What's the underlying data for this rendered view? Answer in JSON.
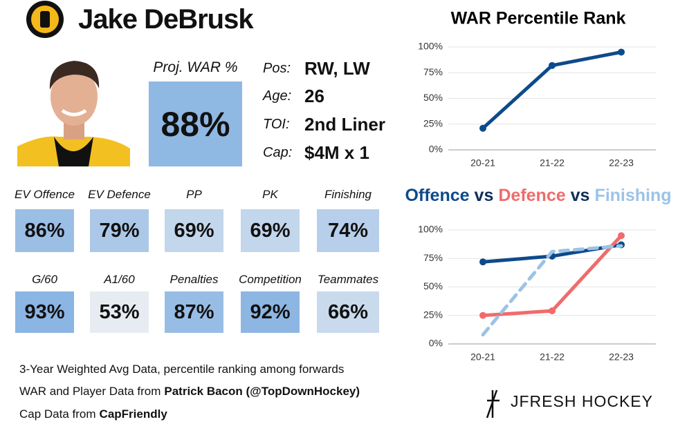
{
  "header": {
    "name": "Jake DeBrusk"
  },
  "proj_war": {
    "label": "Proj. WAR %",
    "value": "88%"
  },
  "info": [
    {
      "label": "Pos:",
      "value": "RW, LW"
    },
    {
      "label": "Age:",
      "value": "26"
    },
    {
      "label": "TOI:",
      "value": "2nd Liner"
    },
    {
      "label": "Cap:",
      "value": "$4M x 1"
    }
  ],
  "stats": [
    [
      {
        "label": "EV Offence",
        "value": "86%"
      },
      {
        "label": "EV Defence",
        "value": "79%"
      },
      {
        "label": "PP",
        "value": "69%"
      },
      {
        "label": "PK",
        "value": "69%"
      },
      {
        "label": "Finishing",
        "value": "74%"
      }
    ],
    [
      {
        "label": "G/60",
        "value": "93%"
      },
      {
        "label": "A1/60",
        "value": "53%"
      },
      {
        "label": "Penalties",
        "value": "87%"
      },
      {
        "label": "Competition",
        "value": "92%"
      },
      {
        "label": "Teammates",
        "value": "66%"
      }
    ]
  ],
  "footer": [
    {
      "text": "3-Year Weighted Avg Data, percentile ranking among forwards"
    },
    {
      "text": "WAR and Player Data from",
      "bold": "Patrick Bacon (@TopDownHockey)"
    },
    {
      "text": "Cap Data from",
      "bold": "CapFriendly"
    }
  ],
  "brand": "JFRESH HOCKEY",
  "chart_data": [
    {
      "type": "line",
      "title": "WAR Percentile Rank",
      "categories": [
        "20-21",
        "21-22",
        "22-23"
      ],
      "series": [
        {
          "name": null,
          "color": "#0d4a8a",
          "values": [
            21,
            82,
            95
          ]
        }
      ],
      "ylim": [
        0,
        100
      ],
      "yticks": [
        {
          "value": 0,
          "label": "0%"
        },
        {
          "value": 25,
          "label": "25%"
        },
        {
          "value": 50,
          "label": "50%"
        },
        {
          "value": 75,
          "label": "75%"
        },
        {
          "value": 100,
          "label": "100%"
        }
      ],
      "grid": true
    },
    {
      "type": "line",
      "title_separator": "vs",
      "categories": [
        "20-21",
        "21-22",
        "22-23"
      ],
      "series": [
        {
          "name": "Offence",
          "color": "#0d4a8a",
          "values": [
            72,
            77,
            87
          ]
        },
        {
          "name": "Defence",
          "color": "#f06b6b",
          "values": [
            25,
            29,
            95
          ]
        },
        {
          "name": "Finishing",
          "color": "#9cc3e6",
          "values": [
            8,
            81,
            86
          ],
          "dashed": true
        }
      ],
      "ylim": [
        0,
        100
      ],
      "yticks": [
        {
          "value": 0,
          "label": "0%"
        },
        {
          "value": 25,
          "label": "25%"
        },
        {
          "value": 50,
          "label": "50%"
        },
        {
          "value": 75,
          "label": "75%"
        },
        {
          "value": 100,
          "label": "100%"
        }
      ],
      "grid": true
    }
  ]
}
